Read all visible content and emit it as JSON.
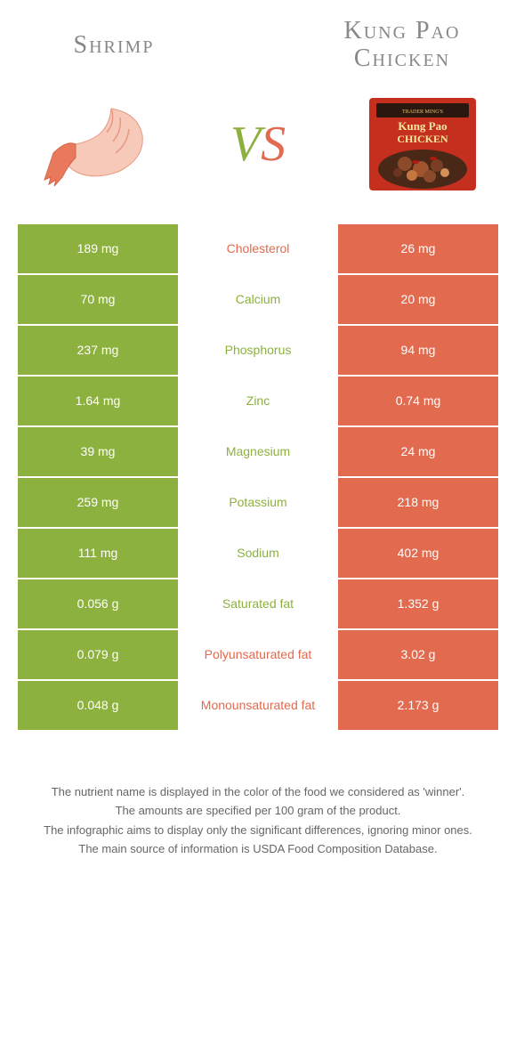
{
  "titles": {
    "left": "Shrimp",
    "right_l1": "Kung Pao",
    "right_l2": "Chicken"
  },
  "vs": "VS",
  "colors": {
    "green": "#8db13e",
    "orange": "#e16a4f",
    "green_text": "#8db13e",
    "orange_text": "#e16a4f",
    "vs_green": "#8db13e",
    "vs_orange": "#e16a4f"
  },
  "rows": [
    {
      "left": "189 mg",
      "label": "Cholesterol",
      "right": "26 mg",
      "winner": "right"
    },
    {
      "left": "70 mg",
      "label": "Calcium",
      "right": "20 mg",
      "winner": "left"
    },
    {
      "left": "237 mg",
      "label": "Phosphorus",
      "right": "94 mg",
      "winner": "left"
    },
    {
      "left": "1.64 mg",
      "label": "Zinc",
      "right": "0.74 mg",
      "winner": "left"
    },
    {
      "left": "39 mg",
      "label": "Magnesium",
      "right": "24 mg",
      "winner": "left"
    },
    {
      "left": "259 mg",
      "label": "Potassium",
      "right": "218 mg",
      "winner": "left"
    },
    {
      "left": "111 mg",
      "label": "Sodium",
      "right": "402 mg",
      "winner": "left"
    },
    {
      "left": "0.056 g",
      "label": "Saturated fat",
      "right": "1.352 g",
      "winner": "left"
    },
    {
      "left": "0.079 g",
      "label": "Polyunsaturated fat",
      "right": "3.02 g",
      "winner": "right"
    },
    {
      "left": "0.048 g",
      "label": "Monounsaturated fat",
      "right": "2.173 g",
      "winner": "right"
    }
  ],
  "footer": [
    "The nutrient name is displayed in the color of the food we considered as 'winner'.",
    "The amounts are specified per 100 gram of the product.",
    "The infographic aims to display only the significant differences, ignoring minor ones.",
    "The main source of information is USDA Food Composition Database."
  ]
}
